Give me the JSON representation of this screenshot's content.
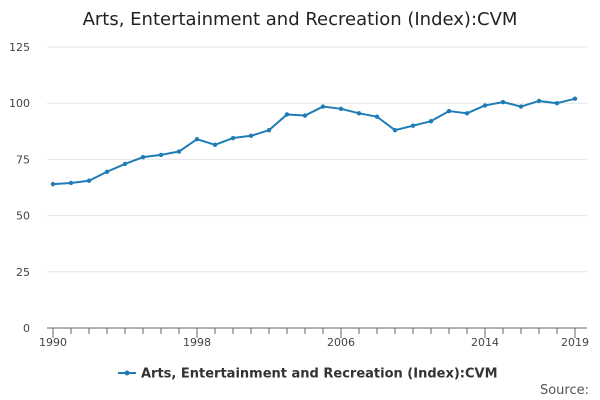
{
  "chart_data": {
    "type": "line",
    "title": "Arts, Entertainment and Recreation (Index):CVM",
    "xlabel": "",
    "ylabel": "",
    "xlim": [
      1990,
      2019
    ],
    "ylim": [
      0,
      125
    ],
    "grid": true,
    "yticks": [
      0,
      25,
      50,
      75,
      100,
      125
    ],
    "xticks": [
      1990,
      1998,
      2006,
      2014,
      2019
    ],
    "legend_position": "bottom-center",
    "colors": {
      "series": "#1F7CB4",
      "grid": "#E6E6E6",
      "axis": "#666666"
    },
    "series": [
      {
        "name": "Arts, Entertainment and Recreation (Index):CVM",
        "x": [
          1990,
          1991,
          1992,
          1993,
          1994,
          1995,
          1996,
          1997,
          1998,
          1999,
          2000,
          2001,
          2002,
          2003,
          2004,
          2005,
          2006,
          2007,
          2008,
          2009,
          2010,
          2011,
          2012,
          2013,
          2014,
          2015,
          2016,
          2017,
          2018,
          2019
        ],
        "values": [
          64,
          64.5,
          65.5,
          69.5,
          73,
          76,
          77,
          78.5,
          84,
          81.5,
          84.5,
          85.5,
          88,
          95,
          94.5,
          98.5,
          97.5,
          95.5,
          94,
          88,
          90,
          92,
          96.5,
          95.5,
          99,
          100.5,
          98.5,
          101,
          100,
          102
        ]
      }
    ],
    "source_label": "Source:"
  }
}
